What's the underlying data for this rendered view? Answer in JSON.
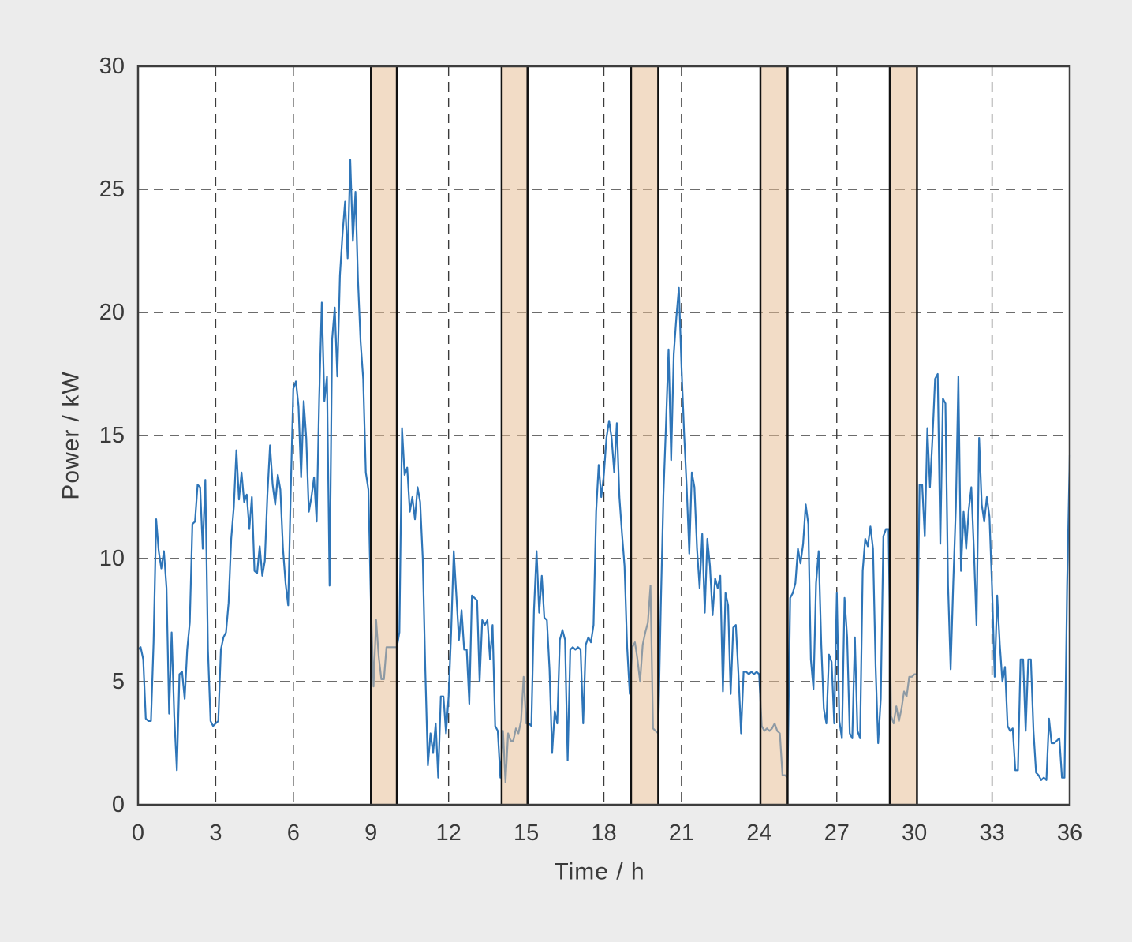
{
  "chart_data": {
    "type": "line",
    "title": "",
    "xlabel": "Time / h",
    "ylabel": "Power / kW",
    "xlim": [
      0,
      36
    ],
    "ylim": [
      0,
      30
    ],
    "xticks": [
      0,
      3,
      6,
      9,
      12,
      15,
      18,
      21,
      24,
      27,
      30,
      33,
      36
    ],
    "yticks": [
      0,
      5,
      10,
      15,
      20,
      25,
      30
    ],
    "grid": "dashed",
    "legend": "none",
    "colors": {
      "line": "#2e75b8",
      "band_fill_base": "rgba(230,188,145,0.52)",
      "band_edge": "#111111",
      "plot_background": "#ffffff",
      "page_background": "#ececec",
      "grid": "#3b3b3b",
      "border": "#3d3d3d",
      "text": "#3a3a3a"
    },
    "highlight_bands": [
      [
        9.0,
        10.0
      ],
      [
        14.05,
        15.05
      ],
      [
        19.05,
        20.1
      ],
      [
        24.05,
        25.1
      ],
      [
        29.05,
        30.1
      ]
    ],
    "series": [
      {
        "name": "Power",
        "t0": 0,
        "dt": 0.1,
        "values": [
          6.3,
          6.4,
          5.9,
          3.5,
          3.4,
          3.4,
          6.6,
          11.6,
          10.3,
          9.6,
          10.3,
          8.8,
          3.7,
          7.0,
          3.6,
          1.4,
          5.3,
          5.4,
          4.3,
          6.3,
          7.4,
          11.4,
          11.5,
          13.0,
          12.9,
          10.4,
          13.2,
          6.3,
          3.4,
          3.2,
          3.3,
          3.4,
          6.3,
          6.8,
          7.0,
          8.2,
          10.8,
          12.1,
          14.4,
          12.4,
          13.5,
          12.3,
          12.6,
          11.2,
          12.5,
          9.5,
          9.4,
          10.5,
          9.3,
          9.9,
          12.6,
          14.6,
          13.0,
          12.2,
          13.4,
          12.8,
          10.4,
          9.0,
          8.1,
          12.8,
          16.9,
          17.2,
          16.2,
          13.3,
          16.4,
          14.9,
          11.9,
          12.5,
          13.3,
          11.5,
          16.5,
          20.4,
          16.4,
          17.4,
          8.9,
          18.9,
          20.2,
          17.4,
          21.5,
          23.2,
          24.5,
          22.2,
          26.2,
          22.9,
          24.9,
          21.3,
          18.8,
          17.3,
          13.5,
          12.8,
          8.0,
          4.8,
          7.5,
          6.0,
          5.1,
          5.1,
          6.4,
          6.4,
          6.4,
          6.4,
          6.4,
          7.0,
          15.3,
          13.4,
          13.7,
          11.9,
          12.5,
          11.6,
          12.9,
          12.3,
          10.0,
          5.5,
          1.6,
          2.9,
          2.1,
          3.3,
          1.1,
          4.4,
          4.4,
          2.9,
          4.4,
          7.0,
          10.3,
          8.5,
          6.7,
          7.9,
          6.3,
          6.3,
          4.1,
          8.5,
          8.4,
          8.3,
          5.0,
          7.5,
          7.3,
          7.5,
          5.9,
          7.3,
          3.2,
          3.0,
          1.1,
          3.0,
          0.9,
          2.9,
          2.6,
          2.6,
          3.1,
          2.9,
          3.4,
          5.2,
          3.3,
          3.3,
          3.2,
          7.9,
          10.3,
          7.8,
          9.3,
          7.6,
          7.5,
          5.5,
          2.1,
          3.8,
          3.3,
          6.7,
          7.1,
          6.7,
          1.8,
          6.3,
          6.4,
          6.3,
          6.4,
          6.3,
          3.3,
          6.5,
          6.8,
          6.6,
          7.3,
          11.9,
          13.8,
          12.5,
          13.4,
          14.9,
          15.6,
          14.9,
          13.5,
          15.5,
          12.5,
          11.0,
          9.7,
          6.4,
          4.5,
          6.4,
          6.6,
          5.9,
          5.0,
          6.5,
          7.0,
          7.4,
          8.9,
          3.1,
          3.0,
          2.9,
          8.1,
          12.6,
          15.4,
          18.5,
          14.0,
          18.3,
          19.8,
          21.0,
          17.8,
          15.1,
          12.9,
          10.2,
          13.5,
          12.9,
          10.4,
          8.8,
          11.0,
          7.8,
          10.8,
          9.7,
          7.7,
          9.2,
          8.8,
          9.3,
          4.6,
          8.6,
          8.1,
          4.5,
          7.2,
          7.3,
          5.3,
          2.9,
          5.4,
          5.4,
          5.3,
          5.4,
          5.3,
          5.4,
          5.3,
          3.2,
          3.0,
          3.1,
          3.0,
          3.1,
          3.3,
          3.0,
          2.9,
          1.2,
          1.2,
          1.1,
          8.4,
          8.6,
          9.0,
          10.4,
          9.8,
          10.6,
          12.2,
          11.4,
          5.9,
          4.7,
          9.0,
          10.3,
          6.5,
          3.9,
          3.3,
          6.1,
          5.8,
          3.3,
          8.6,
          3.4,
          2.7,
          8.4,
          6.8,
          2.9,
          2.7,
          6.8,
          3.0,
          2.7,
          9.5,
          10.8,
          10.5,
          11.3,
          10.4,
          5.6,
          2.5,
          4.3,
          10.9,
          11.2,
          11.2,
          3.6,
          3.3,
          4.0,
          3.4,
          3.9,
          4.6,
          4.4,
          5.2,
          5.2,
          5.3,
          5.3,
          13.0,
          13.0,
          10.9,
          15.3,
          12.9,
          14.9,
          17.3,
          17.5,
          10.6,
          16.5,
          16.3,
          8.9,
          5.5,
          9.0,
          12.1,
          17.4,
          9.5,
          11.9,
          10.4,
          12.0,
          12.9,
          10.3,
          7.3,
          14.9,
          12.2,
          11.5,
          12.5,
          11.7,
          8.8,
          5.2,
          8.5,
          6.5,
          5.0,
          5.6,
          3.2,
          3.0,
          3.1,
          1.4,
          1.4,
          5.9,
          5.9,
          3.0,
          5.9,
          5.9,
          3.0,
          1.3,
          1.2,
          1.0,
          1.1,
          1.0,
          3.5,
          2.5,
          2.5,
          2.6,
          2.7,
          1.1,
          1.1,
          8.9,
          14.2
        ]
      }
    ]
  }
}
